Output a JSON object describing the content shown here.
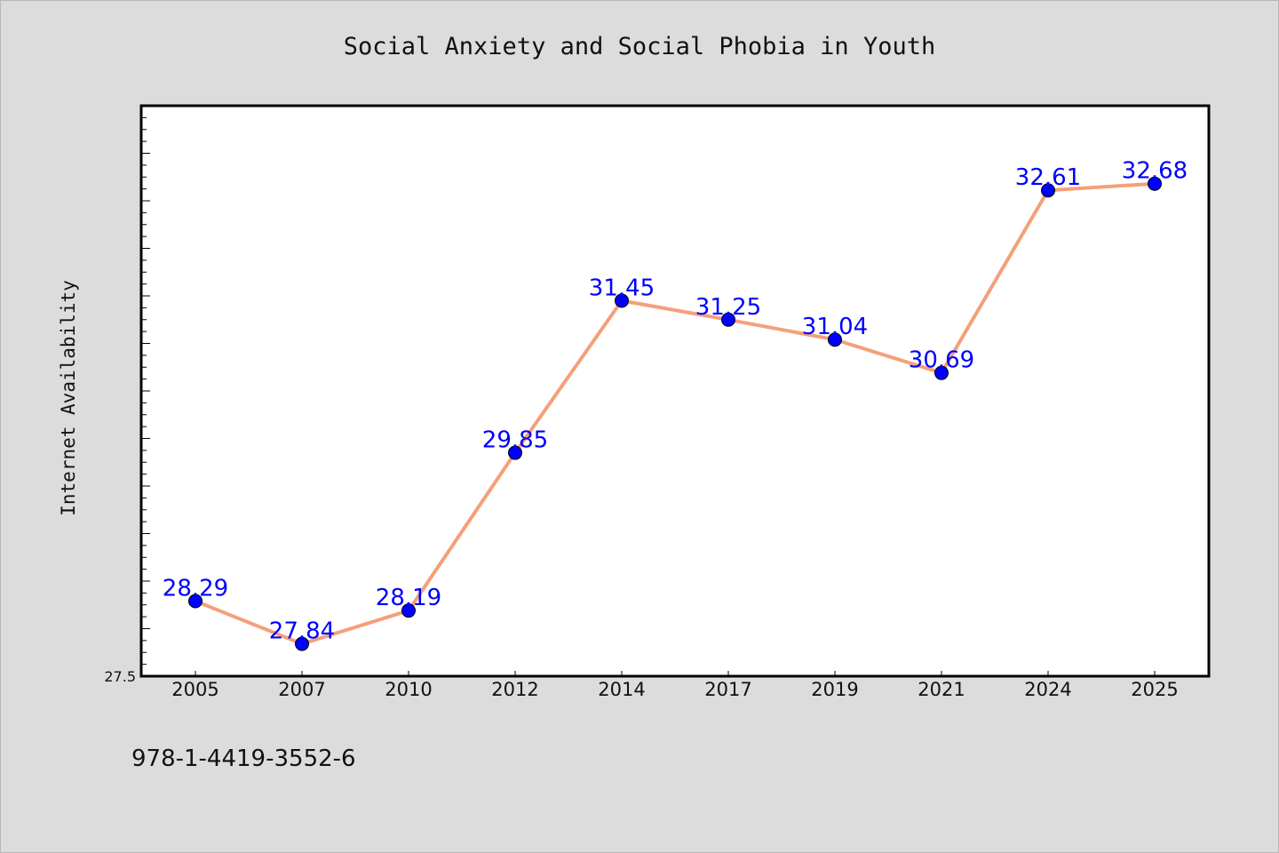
{
  "chart_data": {
    "type": "line",
    "title": "Social Anxiety and Social Phobia in Youth",
    "xlabel": "",
    "ylabel": "Internet Availability",
    "categories": [
      "2005",
      "2007",
      "2010",
      "2012",
      "2014",
      "2017",
      "2019",
      "2021",
      "2024",
      "2025"
    ],
    "series": [
      {
        "values": [
          28.29,
          27.84,
          28.19,
          29.85,
          31.45,
          31.25,
          31.04,
          30.69,
          32.61,
          32.68
        ]
      }
    ],
    "ylim": [
      27.5,
      33.5
    ],
    "ytick_label": "27.5",
    "grid": false,
    "colors": {
      "line": "#f4a07a",
      "marker": "#0000ff",
      "label": "#0000ff",
      "background": "#dcdcdc",
      "plot_background": "#ffffff"
    }
  },
  "footer_text": "978-1-4419-3552-6"
}
